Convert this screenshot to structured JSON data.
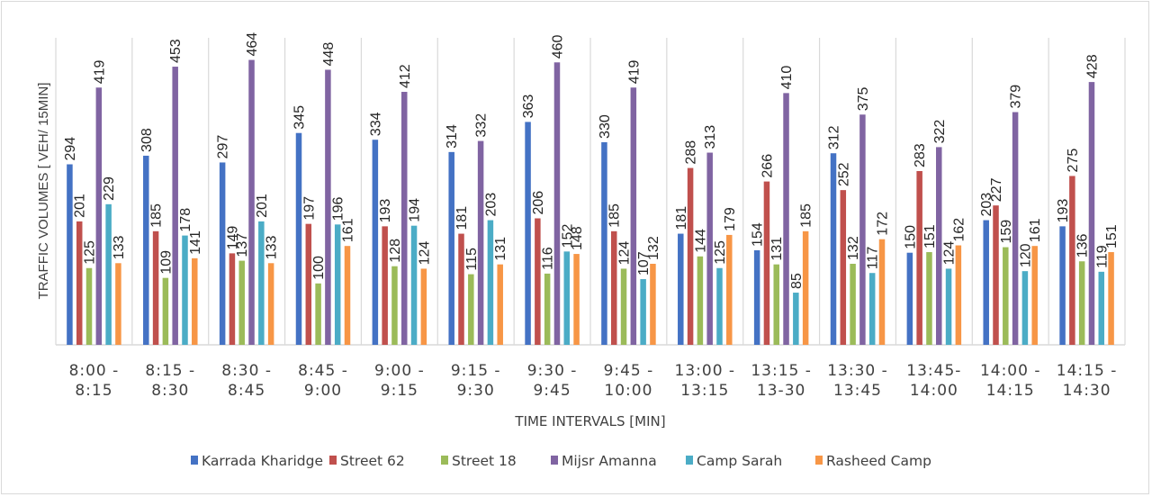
{
  "chart_data": {
    "type": "bar",
    "title": "",
    "xlabel": "TIME INTERVALS [MIN]",
    "ylabel": "TRAFFIC VOLUMES [ VEH/ 15MIN]",
    "ylim": [
      0,
      500
    ],
    "grid": "vertical category separators",
    "legend_position": "bottom",
    "categories": [
      [
        "8:00 -",
        "8:15"
      ],
      [
        "8:15 -",
        "8:30"
      ],
      [
        "8:30 -",
        "8:45"
      ],
      [
        "8:45 -",
        "9:00"
      ],
      [
        "9:00 -",
        "9:15"
      ],
      [
        "9:15 -",
        "9:30"
      ],
      [
        "9:30 -",
        "9:45"
      ],
      [
        "9:45 -",
        "10:00"
      ],
      [
        "13:00 -",
        "13:15"
      ],
      [
        "13:15 -",
        "13-30"
      ],
      [
        "13:30 -",
        "13:45"
      ],
      [
        "13:45-",
        "14:00"
      ],
      [
        "14:00 -",
        "14:15"
      ],
      [
        "14:15 -",
        "14:30"
      ]
    ],
    "series": [
      {
        "name": "Karrada Kharidge",
        "color": "#4472c4",
        "values": [
          294,
          308,
          297,
          345,
          334,
          314,
          363,
          330,
          181,
          154,
          312,
          150,
          203,
          193
        ]
      },
      {
        "name": "Street 62",
        "color": "#c0504d",
        "values": [
          201,
          185,
          149,
          197,
          193,
          181,
          206,
          185,
          288,
          266,
          252,
          283,
          227,
          275
        ]
      },
      {
        "name": "Street 18",
        "color": "#9bbb59",
        "values": [
          125,
          109,
          137,
          100,
          128,
          115,
          116,
          124,
          144,
          131,
          132,
          151,
          159,
          136
        ]
      },
      {
        "name": "Mijsr Amanna",
        "color": "#8064a2",
        "values": [
          419,
          453,
          464,
          448,
          412,
          332,
          460,
          419,
          313,
          410,
          375,
          322,
          379,
          428
        ]
      },
      {
        "name": "Camp Sarah",
        "color": "#4bacc6",
        "values": [
          229,
          178,
          201,
          196,
          194,
          203,
          152,
          107,
          125,
          85,
          117,
          124,
          120,
          119
        ]
      },
      {
        "name": "Rasheed Camp",
        "color": "#f79646",
        "values": [
          133,
          141,
          133,
          161,
          124,
          131,
          148,
          132,
          179,
          185,
          172,
          162,
          161,
          151
        ]
      }
    ]
  }
}
